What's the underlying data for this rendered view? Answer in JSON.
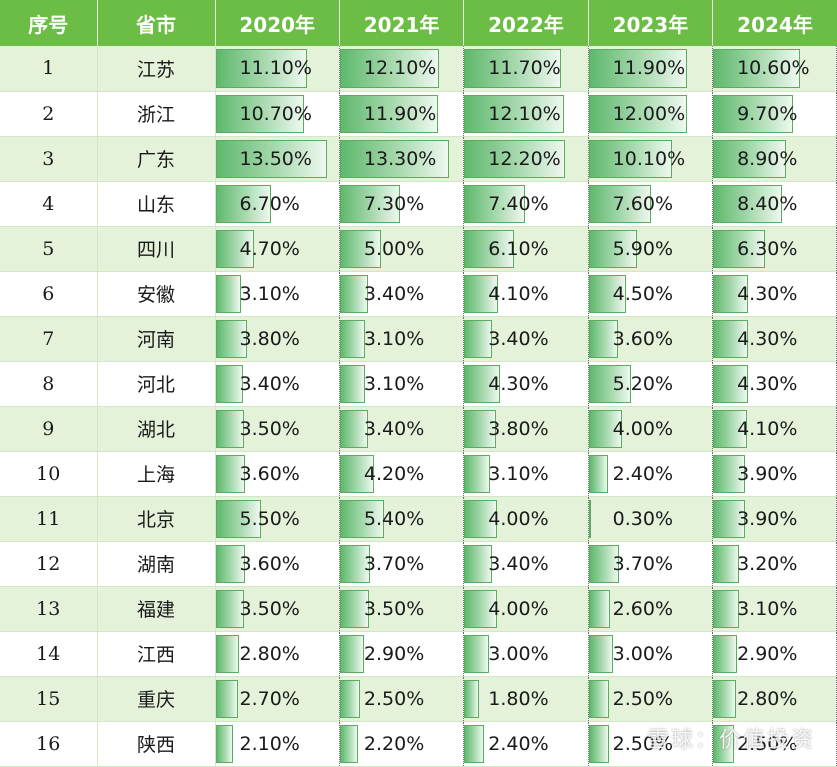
{
  "header": {
    "index": "序号",
    "province": "省市",
    "years": [
      "2020年",
      "2021年",
      "2022年",
      "2023年",
      "2024年"
    ]
  },
  "chart_data": {
    "type": "table",
    "columns": [
      "序号",
      "省市",
      "2020年",
      "2021年",
      "2022年",
      "2023年",
      "2024年"
    ],
    "bar_max": 15,
    "rows": [
      {
        "idx": "1",
        "prov": "江苏",
        "vals": [
          "11.10%",
          "12.10%",
          "11.70%",
          "11.90%",
          "10.60%"
        ],
        "nums": [
          11.1,
          12.1,
          11.7,
          11.9,
          10.6
        ]
      },
      {
        "idx": "2",
        "prov": "浙江",
        "vals": [
          "10.70%",
          "11.90%",
          "12.10%",
          "12.00%",
          "9.70%"
        ],
        "nums": [
          10.7,
          11.9,
          12.1,
          12.0,
          9.7
        ]
      },
      {
        "idx": "3",
        "prov": "广东",
        "vals": [
          "13.50%",
          "13.30%",
          "12.20%",
          "10.10%",
          "8.90%"
        ],
        "nums": [
          13.5,
          13.3,
          12.2,
          10.1,
          8.9
        ]
      },
      {
        "idx": "4",
        "prov": "山东",
        "vals": [
          "6.70%",
          "7.30%",
          "7.40%",
          "7.60%",
          "8.40%"
        ],
        "nums": [
          6.7,
          7.3,
          7.4,
          7.6,
          8.4
        ]
      },
      {
        "idx": "5",
        "prov": "四川",
        "vals": [
          "4.70%",
          "5.00%",
          "6.10%",
          "5.90%",
          "6.30%"
        ],
        "nums": [
          4.7,
          5.0,
          6.1,
          5.9,
          6.3
        ]
      },
      {
        "idx": "6",
        "prov": "安徽",
        "vals": [
          "3.10%",
          "3.40%",
          "4.10%",
          "4.50%",
          "4.30%"
        ],
        "nums": [
          3.1,
          3.4,
          4.1,
          4.5,
          4.3
        ]
      },
      {
        "idx": "7",
        "prov": "河南",
        "vals": [
          "3.80%",
          "3.10%",
          "3.40%",
          "3.60%",
          "4.30%"
        ],
        "nums": [
          3.8,
          3.1,
          3.4,
          3.6,
          4.3
        ]
      },
      {
        "idx": "8",
        "prov": "河北",
        "vals": [
          "3.40%",
          "3.10%",
          "4.30%",
          "5.20%",
          "4.30%"
        ],
        "nums": [
          3.4,
          3.1,
          4.3,
          5.2,
          4.3
        ]
      },
      {
        "idx": "9",
        "prov": "湖北",
        "vals": [
          "3.50%",
          "3.40%",
          "3.80%",
          "4.00%",
          "4.10%"
        ],
        "nums": [
          3.5,
          3.4,
          3.8,
          4.0,
          4.1
        ]
      },
      {
        "idx": "10",
        "prov": "上海",
        "vals": [
          "3.60%",
          "4.20%",
          "3.10%",
          "2.40%",
          "3.90%"
        ],
        "nums": [
          3.6,
          4.2,
          3.1,
          2.4,
          3.9
        ]
      },
      {
        "idx": "11",
        "prov": "北京",
        "vals": [
          "5.50%",
          "5.40%",
          "4.00%",
          "0.30%",
          "3.90%"
        ],
        "nums": [
          5.5,
          5.4,
          4.0,
          0.3,
          3.9
        ]
      },
      {
        "idx": "12",
        "prov": "湖南",
        "vals": [
          "3.60%",
          "3.70%",
          "3.40%",
          "3.70%",
          "3.20%"
        ],
        "nums": [
          3.6,
          3.7,
          3.4,
          3.7,
          3.2
        ]
      },
      {
        "idx": "13",
        "prov": "福建",
        "vals": [
          "3.50%",
          "3.50%",
          "4.00%",
          "2.60%",
          "3.10%"
        ],
        "nums": [
          3.5,
          3.5,
          4.0,
          2.6,
          3.1
        ]
      },
      {
        "idx": "14",
        "prov": "江西",
        "vals": [
          "2.80%",
          "2.90%",
          "3.00%",
          "3.00%",
          "2.90%"
        ],
        "nums": [
          2.8,
          2.9,
          3.0,
          3.0,
          2.9
        ]
      },
      {
        "idx": "15",
        "prov": "重庆",
        "vals": [
          "2.70%",
          "2.50%",
          "1.80%",
          "2.50%",
          "2.80%"
        ],
        "nums": [
          2.7,
          2.5,
          1.8,
          2.5,
          2.8
        ]
      },
      {
        "idx": "16",
        "prov": "陕西",
        "vals": [
          "2.10%",
          "2.20%",
          "2.40%",
          "2.50%",
          "2.50%"
        ],
        "nums": [
          2.1,
          2.2,
          2.4,
          2.5,
          2.5
        ]
      }
    ]
  },
  "watermark": "雪球：价值投资",
  "colors": {
    "header_bg": "#6cbd45",
    "band_odd": "#e3f2d9",
    "bar_start": "#5fb86d",
    "bar_end": "#eef8ef"
  }
}
